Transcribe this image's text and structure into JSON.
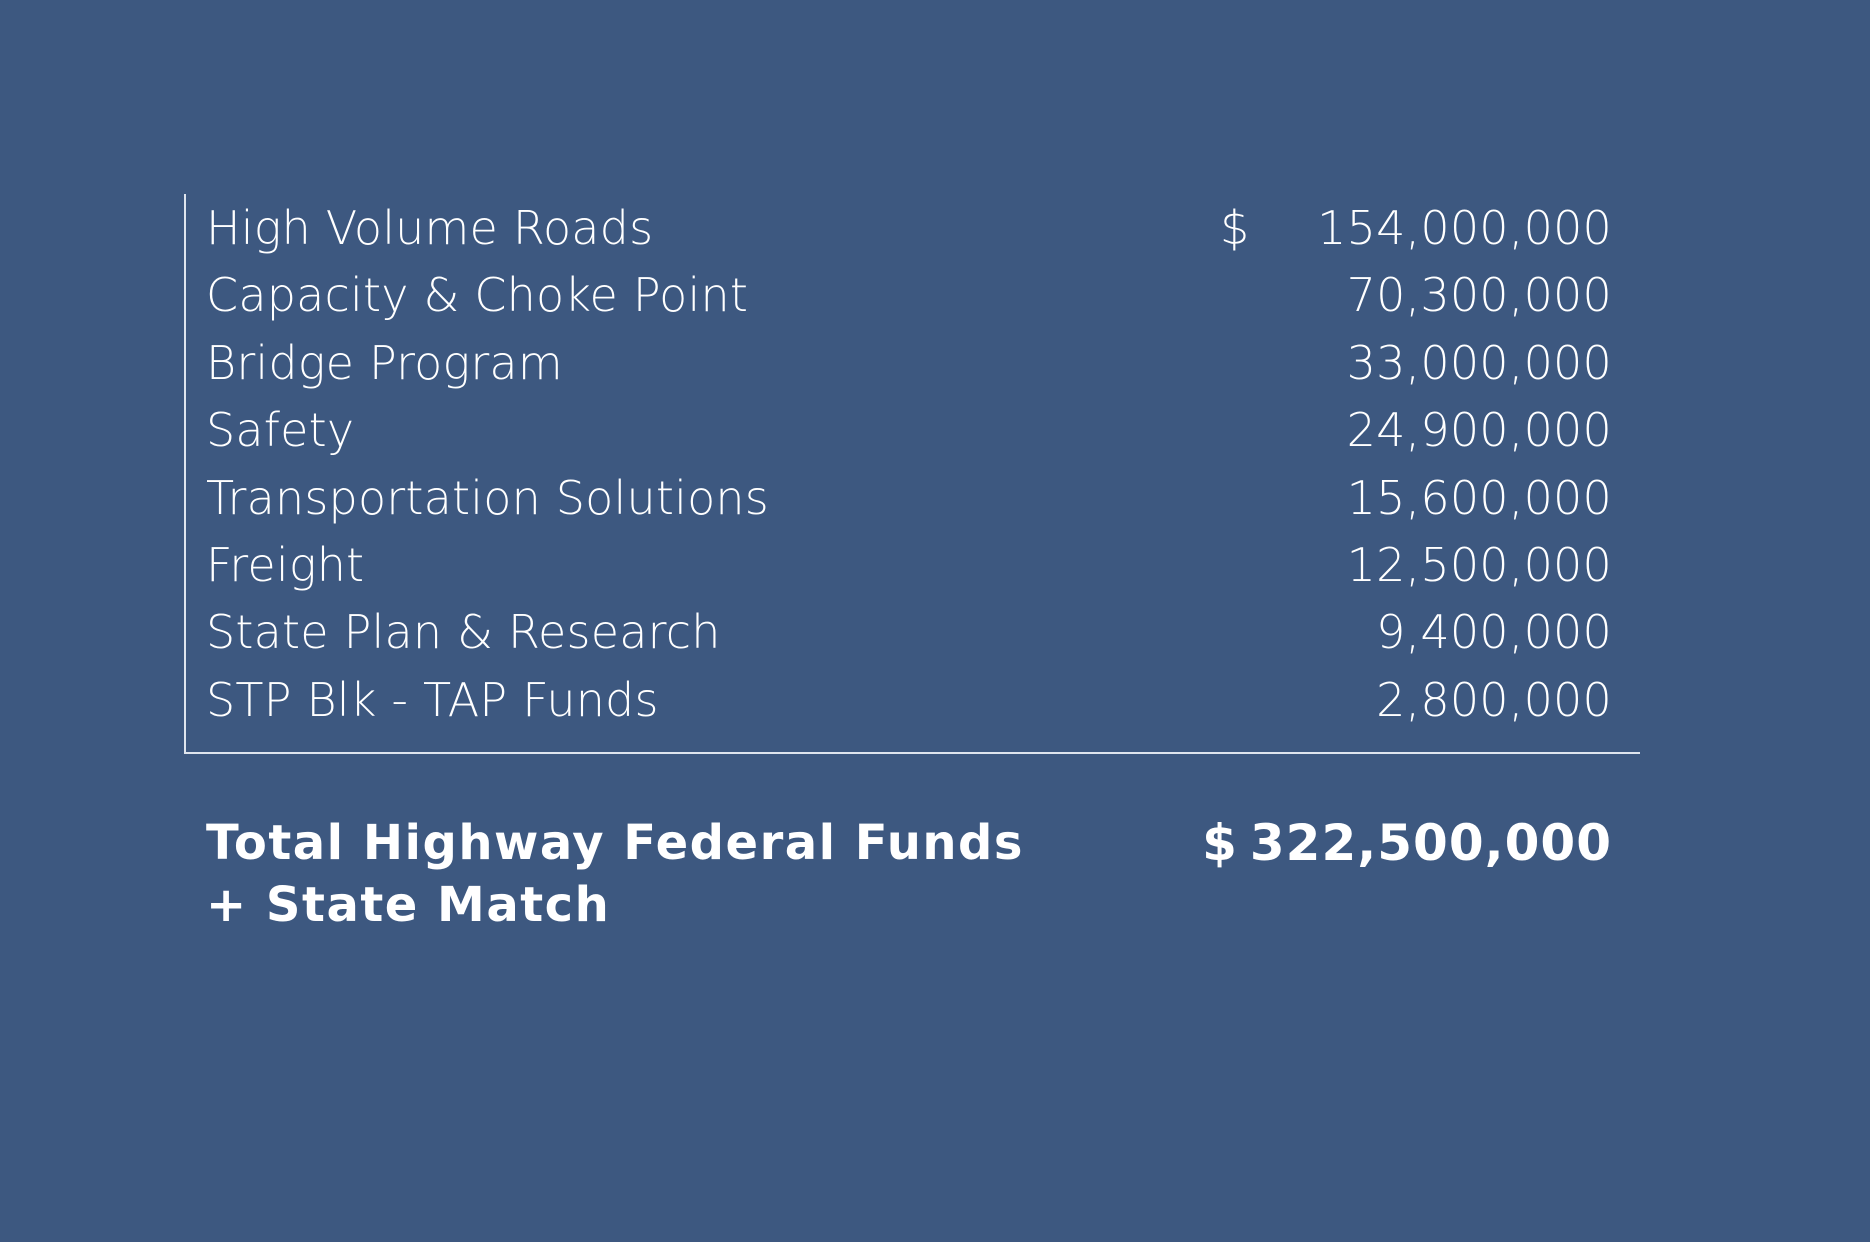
{
  "rows": [
    {
      "label": "High Volume Roads",
      "value": "154,000,000",
      "currency": "$"
    },
    {
      "label": "Capacity & Choke Point",
      "value": "70,300,000"
    },
    {
      "label": "Bridge Program",
      "value": "33,000,000"
    },
    {
      "label": "Safety",
      "value": "24,900,000"
    },
    {
      "label": "Transportation Solutions",
      "value": "15,600,000"
    },
    {
      "label": "Freight",
      "value": "12,500,000"
    },
    {
      "label": "State Plan & Research",
      "value": "9,400,000"
    },
    {
      "label": "STP Blk - TAP Funds",
      "value": "2,800,000"
    }
  ],
  "total": {
    "label_line1": "Total Highway Federal Funds",
    "label_line2": "+ State Match",
    "currency": "$",
    "value": "322,500,000"
  },
  "colors": {
    "background": "#3d5880",
    "text": "#ffffff",
    "rule": "#dfe5ee"
  }
}
